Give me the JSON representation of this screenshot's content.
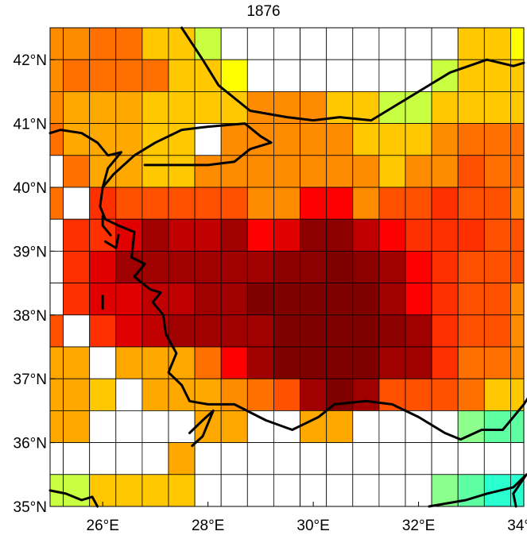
{
  "title": "1876",
  "map": {
    "lon_range": [
      25,
      34
    ],
    "lat_range": [
      35,
      42.5
    ],
    "cell_size_lon": 0.5,
    "cell_size_lat": 0.5,
    "x_ticks": [
      {
        "lon": 26,
        "label": "26°E"
      },
      {
        "lon": 28,
        "label": "28°E"
      },
      {
        "lon": 30,
        "label": "30°E"
      },
      {
        "lon": 32,
        "label": "32°E"
      },
      {
        "lon": 34,
        "label": "34°E"
      }
    ],
    "y_ticks": [
      {
        "lat": 42,
        "label": "42°N"
      },
      {
        "lat": 41,
        "label": "41°N"
      },
      {
        "lat": 40,
        "label": "40°N"
      },
      {
        "lat": 39,
        "label": "39°N"
      },
      {
        "lat": 38,
        "label": "38°N"
      },
      {
        "lat": 37,
        "label": "37°N"
      },
      {
        "lat": 36,
        "label": "36°N"
      },
      {
        "lat": 35,
        "label": "35°N"
      }
    ],
    "palette": {
      "w": "#ffffff",
      "c": "#29ffcf",
      "t": "#5effa0",
      "g": "#8cff8c",
      "l": "#c8ff40",
      "y": "#ffff00",
      "p": "#ffe000",
      "a": "#ffc800",
      "b": "#ffa800",
      "o": "#ff8c00",
      "d": "#ff7000",
      "e": "#ff5000",
      "f": "#ff3000",
      "r": "#ff0000",
      "s": "#e00000",
      "k": "#c00000",
      "m": "#a00000",
      "n": "#8c0000",
      "x": "#800000"
    },
    "grid_rows": [
      "ooddaalwwwwwwwwwaayy",
      "oddddaaywwwwwwwlaaaa",
      "obbbaaaaoooaallaaaaa",
      "dbbbaawoooooaaaoddda",
      "wdbbaaoooooooaooedda",
      "dwfeeeeeoorroeefeeoo",
      "wffsmkkmrsnnkrfffeeo",
      "wfsmmmmmmnnxnmrfeeeo",
      "wfsskkmmxxxxxmrfeeoo",
      "ewfskmmmmxxxxnmfeeoo",
      "bbwbbbdrmxxxxmmfddoo",
      "bbawbbbodemxmeeedaaa",
      "bbwwwwbbwwbbwwwwgtta",
      "wwwwwbwwwwwwwwwwwwwt",
      "llaaaawwwwwwwwwgtccc"
    ],
    "coast_lines": [
      [
        [
          27.5,
          42.5
        ],
        [
          27.9,
          42.0
        ],
        [
          28.2,
          41.6
        ],
        [
          28.8,
          41.2
        ],
        [
          29.5,
          41.1
        ],
        [
          30.0,
          41.05
        ],
        [
          30.5,
          41.1
        ],
        [
          31.1,
          41.05
        ],
        [
          31.6,
          41.3
        ],
        [
          32.2,
          41.6
        ],
        [
          32.6,
          41.8
        ],
        [
          33.3,
          42.0
        ],
        [
          33.8,
          41.9
        ],
        [
          34.0,
          41.95
        ]
      ],
      [
        [
          25.0,
          40.85
        ],
        [
          25.2,
          40.9
        ],
        [
          25.6,
          40.85
        ],
        [
          25.9,
          40.7
        ],
        [
          26.1,
          40.5
        ],
        [
          26.35,
          40.55
        ]
      ],
      [
        [
          26.35,
          40.55
        ],
        [
          26.1,
          40.3
        ],
        [
          26.0,
          40.0
        ],
        [
          25.95,
          39.7
        ],
        [
          26.05,
          39.5
        ],
        [
          26.3,
          39.4
        ],
        [
          26.6,
          39.3
        ],
        [
          26.55,
          38.9
        ],
        [
          26.8,
          38.8
        ],
        [
          26.6,
          38.6
        ],
        [
          26.9,
          38.4
        ],
        [
          27.1,
          38.35
        ],
        [
          26.95,
          38.2
        ],
        [
          27.15,
          38.0
        ],
        [
          27.2,
          37.7
        ],
        [
          27.4,
          37.4
        ],
        [
          27.25,
          37.1
        ],
        [
          27.5,
          36.9
        ],
        [
          27.65,
          36.65
        ],
        [
          28.0,
          36.6
        ],
        [
          28.5,
          36.6
        ],
        [
          29.1,
          36.35
        ],
        [
          29.6,
          36.2
        ],
        [
          30.1,
          36.4
        ],
        [
          30.4,
          36.6
        ],
        [
          31.0,
          36.65
        ],
        [
          31.5,
          36.6
        ],
        [
          32.0,
          36.4
        ],
        [
          32.5,
          36.15
        ],
        [
          32.8,
          36.05
        ],
        [
          33.2,
          36.2
        ],
        [
          33.6,
          36.2
        ],
        [
          34.0,
          36.6
        ],
        [
          34.2,
          36.85
        ]
      ],
      [
        [
          26.0,
          40.0
        ],
        [
          26.2,
          40.2
        ],
        [
          26.6,
          40.5
        ],
        [
          27.0,
          40.7
        ],
        [
          27.5,
          40.9
        ],
        [
          28.0,
          40.95
        ],
        [
          28.7,
          41.0
        ],
        [
          29.0,
          40.8
        ],
        [
          29.2,
          40.7
        ],
        [
          28.8,
          40.6
        ],
        [
          28.5,
          40.4
        ],
        [
          28.0,
          40.35
        ],
        [
          27.5,
          40.35
        ],
        [
          26.8,
          40.35
        ]
      ],
      [
        [
          26.0,
          39.55
        ],
        [
          26.0,
          39.4
        ],
        [
          26.15,
          39.25
        ]
      ],
      [
        [
          26.3,
          39.25
        ],
        [
          26.25,
          39.05
        ],
        [
          26.05,
          39.15
        ]
      ],
      [
        [
          26.0,
          38.3
        ],
        [
          26.0,
          38.1
        ]
      ],
      [
        [
          27.65,
          36.15
        ],
        [
          27.9,
          36.35
        ],
        [
          28.1,
          36.5
        ],
        [
          27.9,
          36.1
        ],
        [
          27.7,
          35.95
        ]
      ],
      [
        [
          25.0,
          35.25
        ],
        [
          25.3,
          35.2
        ],
        [
          25.6,
          35.1
        ],
        [
          25.8,
          35.15
        ],
        [
          25.9,
          35.0
        ]
      ],
      [
        [
          32.2,
          35.0
        ],
        [
          32.9,
          35.1
        ],
        [
          33.3,
          35.2
        ],
        [
          33.8,
          35.3
        ],
        [
          34.05,
          35.5
        ],
        [
          33.8,
          35.2
        ],
        [
          33.85,
          35.0
        ]
      ]
    ]
  }
}
